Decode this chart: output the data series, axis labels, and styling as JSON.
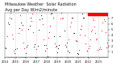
{
  "title": "Milwaukee Weather  Solar Radiation",
  "subtitle": "Avg per Day W/m2/minute",
  "bg_color": "#ffffff",
  "plot_bg": "#ffffff",
  "ylim": [
    0,
    8
  ],
  "ytick_vals": [
    1,
    2,
    3,
    4,
    5,
    6,
    7
  ],
  "ytick_labels": [
    "1",
    "2",
    "3",
    "4",
    "5",
    "6",
    "7"
  ],
  "highlight_color": "#ff0000",
  "highlight_xstart": 0.8,
  "highlight_xend": 1.0,
  "highlight_ystart": 7.5,
  "highlight_yend": 8.0,
  "red_color": "#ff0000",
  "black_color": "#000000",
  "grid_color": "#bbbbbb",
  "n_years": 10,
  "seed": 42,
  "title_fontsize": 3.5,
  "subtitle_fontsize": 3.0,
  "tick_labelsize": 2.5,
  "markersize": 0.8,
  "linewidth_grid": 0.4
}
